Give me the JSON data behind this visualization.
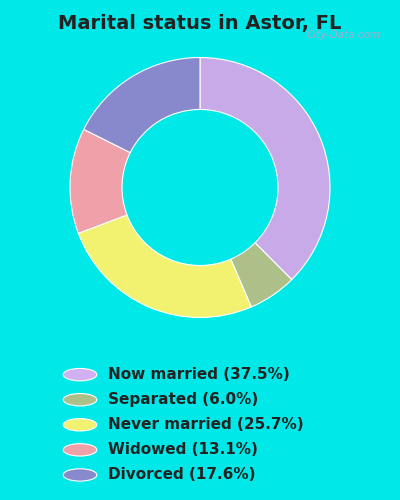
{
  "title": "Marital status in Astor, FL",
  "categories": [
    "Now married",
    "Separated",
    "Never married",
    "Widowed",
    "Divorced"
  ],
  "values": [
    37.5,
    6.0,
    25.7,
    13.1,
    17.6
  ],
  "colors": [
    "#c8aae8",
    "#aec08a",
    "#f2f270",
    "#f0a0a8",
    "#8888cc"
  ],
  "legend_labels": [
    "Now married (37.5%)",
    "Separated (6.0%)",
    "Never married (25.7%)",
    "Widowed (13.1%)",
    "Divorced (17.6%)"
  ],
  "legend_colors": [
    "#d0b0f0",
    "#aec08a",
    "#f2f270",
    "#f0a0a8",
    "#8888cc"
  ],
  "bg_outer": "#00e8e8",
  "bg_chart_color": "#d4ede0",
  "watermark": "City-Data.com",
  "title_fontsize": 14,
  "legend_fontsize": 11
}
